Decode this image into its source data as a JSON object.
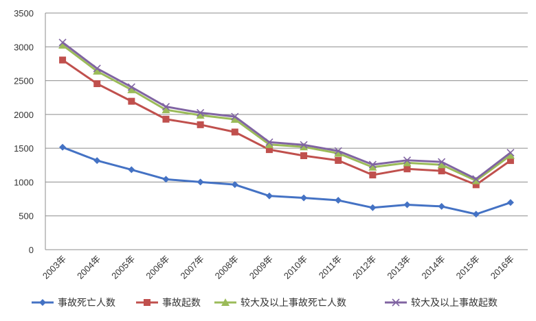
{
  "chart_data": {
    "type": "line",
    "categories": [
      "2003年",
      "2004年",
      "2005年",
      "2006年",
      "2007年",
      "2008年",
      "2009年",
      "2010年",
      "2011年",
      "2012年",
      "2013年",
      "2014年",
      "2015年",
      "2016年"
    ],
    "ylim": [
      0,
      3500
    ],
    "yticks": [
      0,
      500,
      1000,
      1500,
      2000,
      2500,
      3000,
      3500
    ],
    "grid": true,
    "legend_position": "bottom",
    "series": [
      {
        "name": "事故死亡人数",
        "color": "#4472c4",
        "marker": "diamond",
        "values": [
          1515,
          1318,
          1183,
          1041,
          1000,
          962,
          795,
          766,
          730,
          621,
          665,
          640,
          525,
          697
        ]
      },
      {
        "name": "事故起数",
        "color": "#c0504d",
        "marker": "square",
        "values": [
          2805,
          2455,
          2195,
          1930,
          1848,
          1740,
          1480,
          1390,
          1320,
          1105,
          1195,
          1165,
          960,
          1318
        ]
      },
      {
        "name": "较大及以上事故死亡人数",
        "color": "#9bbb59",
        "marker": "triangle",
        "values": [
          3025,
          2640,
          2365,
          2068,
          1988,
          1928,
          1555,
          1520,
          1425,
          1220,
          1285,
          1255,
          1020,
          1395
        ]
      },
      {
        "name": "较大及以上事故起数",
        "color": "#8064a2",
        "marker": "x",
        "values": [
          3065,
          2680,
          2405,
          2115,
          2025,
          1968,
          1590,
          1550,
          1460,
          1258,
          1322,
          1298,
          1045,
          1435
        ]
      }
    ]
  }
}
